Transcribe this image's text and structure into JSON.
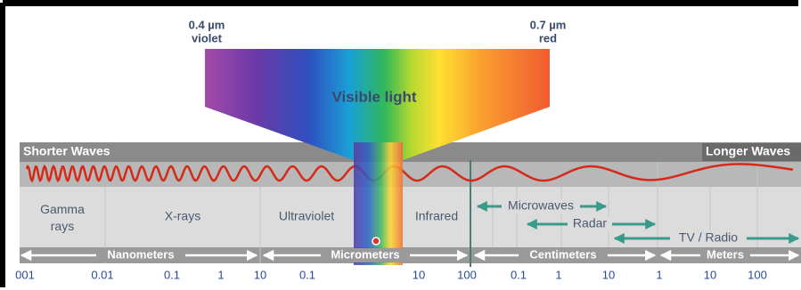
{
  "visible": {
    "title": "Visible light",
    "violet_wavelength": "0.4 µm",
    "violet": "violet",
    "red_wavelength": "0.7 µm",
    "red": "red"
  },
  "direction": {
    "shorter": "Shorter Waves",
    "longer": "Longer Waves"
  },
  "regions": [
    "Gamma rays",
    "X-rays",
    "Ultraviolet",
    "Infrared"
  ],
  "bands": [
    "Microwaves",
    "Radar",
    "TV / Radio"
  ],
  "units": [
    "Nanometers",
    "Micrometers",
    "Centimeters",
    "Meters"
  ],
  "ticks": [
    "001",
    "0.01",
    "0.1",
    "1",
    "10",
    "0.1",
    "10",
    "100",
    "0.1",
    "1",
    "10",
    "1",
    "10",
    "100"
  ]
}
